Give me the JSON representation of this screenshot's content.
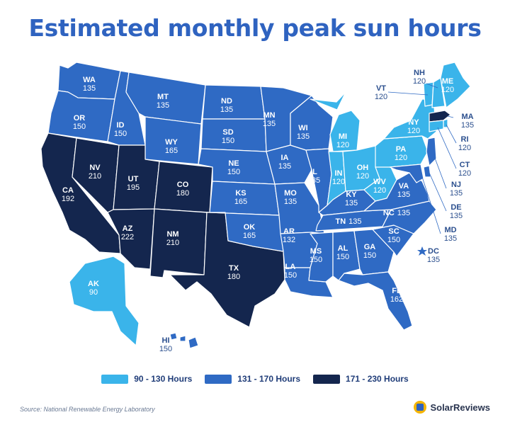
{
  "title": "Estimated monthly peak sun hours",
  "colors": {
    "low": "#3ab4ea",
    "mid": "#2f6ac4",
    "high": "#14264e",
    "border": "#ffffff",
    "title": "#2f63c0"
  },
  "legend": [
    {
      "label": "90 - 130 Hours",
      "color": "#3ab4ea"
    },
    {
      "label": "131 - 170 Hours",
      "color": "#2f6ac4"
    },
    {
      "label": "171 - 230 Hours",
      "color": "#14264e"
    }
  ],
  "states": {
    "WA": {
      "abbr": "WA",
      "value": "135"
    },
    "OR": {
      "abbr": "OR",
      "value": "150"
    },
    "CA": {
      "abbr": "CA",
      "value": "192"
    },
    "NV": {
      "abbr": "NV",
      "value": "210"
    },
    "ID": {
      "abbr": "ID",
      "value": "150"
    },
    "MT": {
      "abbr": "MT",
      "value": "135"
    },
    "WY": {
      "abbr": "WY",
      "value": "165"
    },
    "UT": {
      "abbr": "UT",
      "value": "195"
    },
    "CO": {
      "abbr": "CO",
      "value": "180"
    },
    "AZ": {
      "abbr": "AZ",
      "value": "222"
    },
    "NM": {
      "abbr": "NM",
      "value": "210"
    },
    "TX": {
      "abbr": "TX",
      "value": "180"
    },
    "ND": {
      "abbr": "ND",
      "value": "135"
    },
    "SD": {
      "abbr": "SD",
      "value": "150"
    },
    "NE": {
      "abbr": "NE",
      "value": "150"
    },
    "KS": {
      "abbr": "KS",
      "value": "165"
    },
    "OK": {
      "abbr": "OK",
      "value": "165"
    },
    "MN": {
      "abbr": "MN",
      "value": "135"
    },
    "IA": {
      "abbr": "IA",
      "value": "135"
    },
    "MO": {
      "abbr": "MO",
      "value": "135"
    },
    "AR": {
      "abbr": "AR",
      "value": "132"
    },
    "LA": {
      "abbr": "LA",
      "value": "150"
    },
    "WI": {
      "abbr": "WI",
      "value": "135"
    },
    "IL": {
      "abbr": "IL",
      "value": "135"
    },
    "MI": {
      "abbr": "MI",
      "value": "120"
    },
    "IN": {
      "abbr": "IN",
      "value": "120"
    },
    "OH": {
      "abbr": "OH",
      "value": "120"
    },
    "KY": {
      "abbr": "KY",
      "value": "135"
    },
    "TN": {
      "abbr": "TN",
      "value": "135"
    },
    "MS": {
      "abbr": "MS",
      "value": "150"
    },
    "AL": {
      "abbr": "AL",
      "value": "150"
    },
    "GA": {
      "abbr": "GA",
      "value": "150"
    },
    "FL": {
      "abbr": "FL",
      "value": "162"
    },
    "SC": {
      "abbr": "SC",
      "value": "150"
    },
    "NC": {
      "abbr": "NC",
      "value": "135"
    },
    "VA": {
      "abbr": "VA",
      "value": "135"
    },
    "WV": {
      "abbr": "WV",
      "value": "120"
    },
    "PA": {
      "abbr": "PA",
      "value": "120"
    },
    "NY": {
      "abbr": "NY",
      "value": "120"
    },
    "VT": {
      "abbr": "VT",
      "value": "120"
    },
    "NH": {
      "abbr": "NH",
      "value": "120"
    },
    "ME": {
      "abbr": "ME",
      "value": "120"
    },
    "MA": {
      "abbr": "MA",
      "value": "135"
    },
    "RI": {
      "abbr": "RI",
      "value": "120"
    },
    "CT": {
      "abbr": "CT",
      "value": "120"
    },
    "NJ": {
      "abbr": "NJ",
      "value": "135"
    },
    "DE": {
      "abbr": "DE",
      "value": "135"
    },
    "MD": {
      "abbr": "MD",
      "value": "135"
    },
    "DC": {
      "abbr": "DC",
      "value": "135"
    },
    "AK": {
      "abbr": "AK",
      "value": "90"
    },
    "HI": {
      "abbr": "HI",
      "value": "150"
    }
  },
  "source": "Source: National Renewable Energy Laboratory",
  "brand": "SolarReviews"
}
